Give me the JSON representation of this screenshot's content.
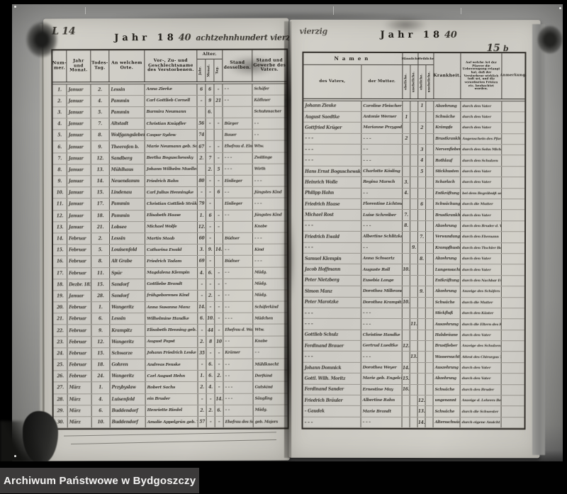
{
  "banner": {
    "text": "Archiwum Państwowe w Bydgoszczy",
    "bg_color": "#3c3a3a",
    "text_color": "#f4f3f2"
  },
  "left_page": {
    "page_mark": "L",
    "page_number": "14",
    "title_printed": "Jahr 18",
    "title_year_hw": "40",
    "title_handwritten": "achtzehnhundert vierzig",
    "columns": {
      "nummer": "Num- mer.",
      "jahr_monat": "Jahr und Monat.",
      "todestag": "Todes- Tag.",
      "ort": "An welchem Orte.",
      "name": "Vor-, Zu- und Geschlechtsname des Verstorbenen.",
      "alter": "Alter.",
      "alter_jahr": "Jahr.",
      "alter_monat": "Monat.",
      "alter_tag": "Tag.",
      "stand": "Stand desselben.",
      "stand_vater": "Stand und Gewerbe des Vaters."
    },
    "rows": [
      [
        "1.",
        "Januar",
        "2.",
        "Lessin",
        "Anna Zierke",
        "6",
        "6",
        "–",
        "– –",
        "Schäfer"
      ],
      [
        "2.",
        "Januar",
        "4.",
        "Pammin",
        "Carl Gottlieb Cornell",
        "–",
        "9",
        "21",
        "– –",
        "Käthner"
      ],
      [
        "3.",
        "Januar",
        "5.",
        "Pammin",
        "Barmira Neumann",
        "",
        "6.",
        "",
        "",
        "Schuhmacher"
      ],
      [
        "4.",
        "Januar",
        "7.",
        "Altstadt",
        "Christian Knüpfler",
        "56",
        "–",
        "–",
        "Bürger",
        "– –"
      ],
      [
        "5.",
        "Januar",
        "8.",
        "Wolfgangsleben",
        "Caspar Sydow",
        "74",
        "",
        "",
        "Bauer",
        "– –"
      ],
      [
        "6.",
        "Januar",
        "9.",
        "Theerofen b.",
        "Marie Neumann geb. Sonntag",
        "67",
        "–",
        "–",
        "Ehefrau d. Einwohners",
        "Wtw."
      ],
      [
        "7.",
        "Januar",
        "12.",
        "Sandberg",
        "Bertha Boguschewsky",
        "2.",
        "7",
        "–",
        "– – –",
        "Zwillinge"
      ],
      [
        "8.",
        "Januar",
        "13.",
        "Mühlhaus",
        "Johann Wilhelm Mueller",
        "",
        "2.",
        "5",
        "– – –",
        "Wirth"
      ],
      [
        "9.",
        "Januar",
        "14.",
        "Neuendamm",
        "Friedrich Bahn",
        "80",
        "–",
        "–",
        "Einlieger",
        "– – –"
      ],
      [
        "10.",
        "Januar",
        "15.",
        "Lindenau",
        "Carl Julius Henningke",
        "–",
        "–",
        "6",
        "– –",
        "Jüngstes Kind"
      ],
      [
        "11.",
        "Januar",
        "17.",
        "Pammin",
        "Christian Gottlieb Sträkling",
        "79",
        "–",
        "",
        "Einlieger",
        "– – –"
      ],
      [
        "12.",
        "Januar",
        "18.",
        "Pammin",
        "Elisabeth Haase",
        "1.",
        "6",
        "–",
        "– –",
        "Jüngstes Kind"
      ],
      [
        "13.",
        "Januar",
        "21.",
        "Lobsee",
        "Michael Wolfe",
        "12.",
        "–",
        "–",
        "",
        "Knabe"
      ],
      [
        "14.",
        "Februar",
        "2.",
        "Lessin",
        "Martin Staab",
        "60",
        "–",
        "",
        "Büdner",
        "– – –"
      ],
      [
        "15.",
        "Februar",
        "5.",
        "Louisenfeld",
        "Catharina Ewald",
        "3.",
        "9.",
        "14.",
        "– –",
        "Kind"
      ],
      [
        "16.",
        "Februar",
        "8.",
        "Alt Grabe",
        "Friedrich Tadam",
        "69",
        "–",
        "",
        "Büdner",
        "– – –"
      ],
      [
        "17.",
        "Februar",
        "11.",
        "Spür",
        "Magdalena Klempin",
        "4.",
        "6.",
        "–",
        "– –",
        "Mädg."
      ],
      [
        "18.",
        "Dezbr. 1839",
        "15.",
        "Sandorf",
        "Gottliebe Brandt",
        "–",
        "–",
        "–",
        "–",
        "Mädg."
      ],
      [
        "19.",
        "Januar",
        "28.",
        "Sandorf",
        "frühgeborenes Kind",
        "–",
        "2.",
        "–",
        "– –",
        "Mädg."
      ],
      [
        "20.",
        "Februar",
        "1.",
        "Wangeritz",
        "Anna Susanna Manz",
        "14.",
        "–",
        "–",
        "– –",
        "Schäferkind"
      ],
      [
        "21.",
        "Februar",
        "6.",
        "Lessin",
        "Wilhelmine Handke",
        "6.",
        "10.",
        "–",
        "– – –",
        "Mädchen"
      ],
      [
        "22.",
        "Februar",
        "9.",
        "Krampitz",
        "Elisabeth Henning geb. Watt",
        "–",
        "44",
        "–",
        "Ehefrau d. Wassermüllers",
        "Wtw."
      ],
      [
        "23.",
        "Februar",
        "12.",
        "Wangeritz",
        "August Papst",
        "2.",
        "8",
        "10",
        "– –",
        "Knabe"
      ],
      [
        "24.",
        "Februar",
        "15.",
        "Schwarze",
        "Johann Friedrich Leske",
        "35",
        "–",
        "–",
        "Krämer",
        "– –"
      ],
      [
        "25.",
        "Februar",
        "18.",
        "Gohren",
        "Andreas Fenske",
        "–",
        "6.",
        "–",
        "– –",
        "Mühlknecht"
      ],
      [
        "26.",
        "Februar",
        "24.",
        "Wangeritz",
        "Carl August Hehn",
        "1.",
        "6.",
        "2.",
        "– –",
        "Dorfkind"
      ],
      [
        "27.",
        "März",
        "1.",
        "Przybyslaw",
        "Robert Sachs",
        "2.",
        "4.",
        "–",
        "– – –",
        "Gutskind"
      ],
      [
        "28.",
        "März",
        "4.",
        "Luisenfeld",
        "ein Bruder",
        "–",
        "–",
        "14.",
        "– – –",
        "Säugling"
      ],
      [
        "29.",
        "März",
        "6.",
        "Buddendorf",
        "Henriette Riedel",
        "2.",
        "2.",
        "6.",
        "– –",
        "Mädg."
      ],
      [
        "30.",
        "März",
        "10.",
        "Buddendorf",
        "Amalie Appelgrün geb. Thiel",
        "57",
        "–",
        "–",
        "Ehefrau des Schäfers",
        "geb. Majors"
      ]
    ]
  },
  "right_page": {
    "page_number": "15",
    "page_flourish": "b",
    "pre_title_scrawl": "vierzig",
    "title_printed": "Jahr 18",
    "title_year_hw": "40",
    "columns": {
      "namen": "Namen",
      "vater": "des Vaters,",
      "mutter": "der Mutter.",
      "maennliche": "Männliche",
      "weibliche": "Weibliche",
      "ehelich": "eheliche.",
      "unehelich": "uneheliche.",
      "krankheit": "Krankheit.",
      "art": "Auf welche Art der Pfarrer die Ueberzeugung erlangt hat, daß der Verstorbene wirklich todt sei, und die verordneten Fristen etc. beobachtet worden.",
      "anmerkung": "Anmerkung."
    },
    "rows": [
      [
        "Johann Zieske",
        "Caroline Fleischer",
        "",
        "",
        "1",
        "",
        "Abzehrung",
        "durch den Vater",
        ""
      ],
      [
        "August Saedtke",
        "Antonie Werner",
        "1",
        "",
        "",
        "",
        "Schwäche",
        "durch den Vater",
        ""
      ],
      [
        "Gottfried Krüger",
        "Marianne Przygodzki",
        "",
        "",
        "2",
        "",
        "Krämpfe",
        "durch den Vater",
        ""
      ],
      [
        "– – –",
        "– – –",
        "2",
        "",
        "",
        "",
        "Brustkrankheit",
        "Augenschein des Pfarrers",
        ""
      ],
      [
        "– – –",
        "– –",
        "",
        "",
        "3",
        "",
        "Nervenfieber",
        "durch den Sohn Michael",
        ""
      ],
      [
        "– – –",
        "– – –",
        "",
        "",
        "4",
        "",
        "Rothlauf",
        "durch den Schulzen",
        ""
      ],
      [
        "Hans Ernst Boguschewsky",
        "Charlotte Kösling",
        "",
        "",
        "5",
        "",
        "Stickhusten",
        "durch den Vater",
        ""
      ],
      [
        "Heinrich Wolle",
        "Regina Marsch",
        "3.",
        "",
        "",
        "",
        "Scharlach",
        "durch den Vater",
        ""
      ],
      [
        "Philipp Hahn",
        "– –",
        "4.",
        "",
        "",
        "",
        "Entkräftung",
        "bei dem Begräbniß selbst",
        ""
      ],
      [
        "Friedrich Haase",
        "Florentine Lichtmann",
        "",
        "",
        "6",
        "",
        "Schwächung",
        "durch die Mutter",
        ""
      ],
      [
        "Michael Rost",
        "Luise Schreiber",
        "7.",
        "",
        "",
        "",
        "Brustkrankheit",
        "durch den Vater",
        ""
      ],
      [
        "– – –",
        "– – –",
        "8.",
        "",
        "",
        "",
        "Abzehrung",
        "durch den Bruder d. Verst.",
        ""
      ],
      [
        "Friedrich Ewald",
        "Albertine Schlitzkopf",
        "",
        "",
        "7.",
        "",
        "Verwundung",
        "durch den Ehemann",
        ""
      ],
      [
        "– – –",
        "– –",
        "",
        "9.",
        "",
        "",
        "Krampfhusten",
        "durch den Tischler Bernhardt",
        ""
      ],
      [
        "Samuel Klempin",
        "Anna Schwartz",
        "",
        "",
        "8.",
        "",
        "Abzehrung",
        "durch den Vater",
        ""
      ],
      [
        "Jacob Hoffmann",
        "Auguste Roll",
        "10.",
        "",
        "",
        "",
        "Lungensucht",
        "durch den Vater",
        ""
      ],
      [
        "Peter Nietzberg",
        "Eusebia Lange",
        "",
        "",
        "",
        "",
        "Entkräftung",
        "durch den Nachbar Ewald",
        ""
      ],
      [
        "Simon Manz",
        "Dorothea Milbrandt",
        "",
        "",
        "9.",
        "",
        "Abzehrung",
        "Anzeige des Schäfers Manz",
        ""
      ],
      [
        "Peter Marotzke",
        "Dorothea Krampitz",
        "10.",
        "",
        "",
        "",
        "Schwäche",
        "durch die Mutter",
        ""
      ],
      [
        "– – –",
        "– – –",
        "",
        "",
        "",
        "",
        "Stickfluß",
        "durch den Küster",
        ""
      ],
      [
        "– – –",
        "– – –",
        "",
        "11.",
        "",
        "",
        "Auszehrung",
        "durch die Eltern des Kindes",
        ""
      ],
      [
        "Gottlieb Schulz",
        "Christine Handke",
        "",
        "",
        "",
        "",
        "Halsbräune",
        "durch den Vater",
        ""
      ],
      [
        "Ferdinand Brauer",
        "Gertrud Luedtke",
        "12.",
        "",
        "",
        "",
        "Brustfieber",
        "Anzeige des Schulzen Abend",
        ""
      ],
      [
        "– – –",
        "– – –",
        "",
        "13.",
        "",
        "",
        "Wassersucht",
        "Attest des Chirurgus Thiel",
        ""
      ],
      [
        "Johann Domnick",
        "Dorothea Weyer",
        "14.",
        "",
        "",
        "",
        "Auszehrung",
        "durch den Vater",
        ""
      ],
      [
        "Gottl. Wilh. Moritz",
        "Marie geb. Engelcke",
        "15.",
        "",
        "",
        "",
        "Abzehrung",
        "durch den Vater",
        ""
      ],
      [
        "Ferdinand Sander",
        "Ernestine May",
        "16.",
        "",
        "",
        "",
        "Schwäche",
        "durch den Bruder",
        ""
      ],
      [
        "Friedrich Bräuler",
        "Albertine Rahn",
        "",
        "",
        "12.",
        "",
        "ungenannt",
        "Anzeige d. Lehrers Bergholz",
        ""
      ],
      [
        "– Gaudek",
        "Marie Brandt",
        "",
        "",
        "13.",
        "",
        "Schwäche",
        "durch die Schwester",
        ""
      ],
      [
        "– – –",
        "– – –",
        "",
        "",
        "14.",
        "",
        "Altersschwäche",
        "durch eigene Ansicht",
        ""
      ]
    ]
  }
}
